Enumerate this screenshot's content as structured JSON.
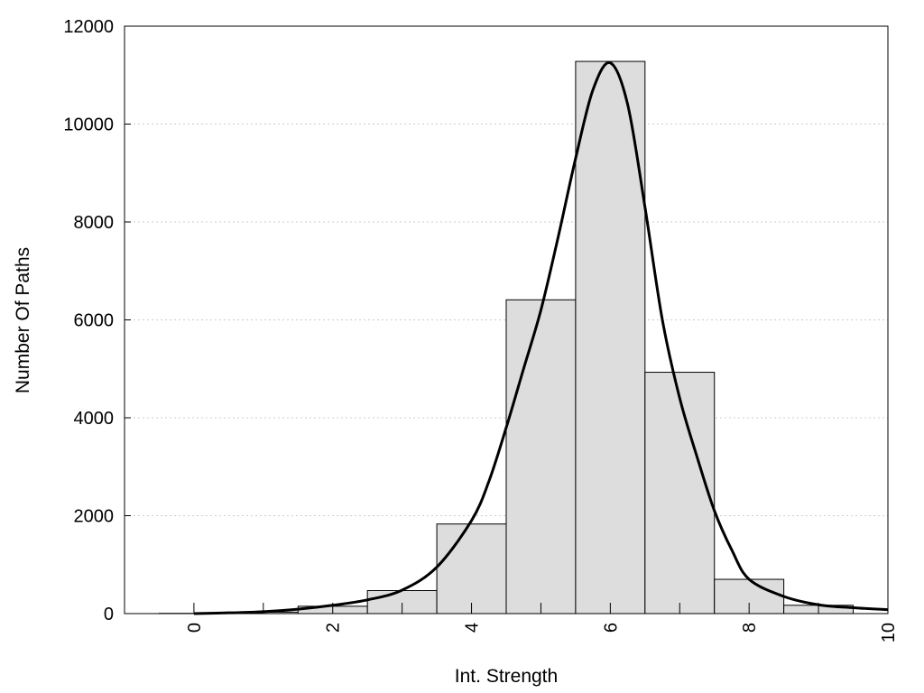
{
  "chart_data": {
    "type": "bar",
    "xlabel": "Int. Strength",
    "ylabel": "Number Of Paths",
    "xlim": [
      -1,
      10
    ],
    "ylim": [
      0,
      12000
    ],
    "x_ticks": [
      0,
      2,
      4,
      6,
      8,
      10
    ],
    "y_ticks": [
      0,
      2000,
      4000,
      6000,
      8000,
      10000,
      12000
    ],
    "x_tick_labels": [
      "0",
      "2",
      "4",
      "6",
      "8",
      "10"
    ],
    "y_tick_labels": [
      "0",
      "2000",
      "4000",
      "6000",
      "8000",
      "10000",
      "12000"
    ],
    "grid": "horizontal dotted",
    "bins": [
      {
        "x": 0,
        "value": 5
      },
      {
        "x": 1,
        "value": 30
      },
      {
        "x": 2,
        "value": 150
      },
      {
        "x": 3,
        "value": 470
      },
      {
        "x": 4,
        "value": 1830
      },
      {
        "x": 5,
        "value": 6410
      },
      {
        "x": 6,
        "value": 11280
      },
      {
        "x": 7,
        "value": 4930
      },
      {
        "x": 8,
        "value": 700
      },
      {
        "x": 9,
        "value": 170
      }
    ],
    "curve": {
      "x": [
        0,
        0.5,
        1,
        1.5,
        2,
        2.5,
        3,
        3.5,
        4,
        4.25,
        4.5,
        4.75,
        5,
        5.25,
        5.5,
        5.75,
        6,
        6.25,
        6.5,
        6.75,
        7,
        7.25,
        7.5,
        7.75,
        8,
        8.5,
        9,
        9.5,
        10
      ],
      "y": [
        0,
        15,
        40,
        90,
        170,
        280,
        480,
        950,
        1900,
        2700,
        3800,
        5000,
        6200,
        7700,
        9300,
        10700,
        11250,
        10400,
        8300,
        6000,
        4400,
        3200,
        2100,
        1300,
        700,
        350,
        180,
        120,
        80
      ]
    },
    "bar_fill": "#dddddd",
    "bar_stroke": "#000000",
    "curve_color": "#000000",
    "grid_color": "#cccccc"
  }
}
